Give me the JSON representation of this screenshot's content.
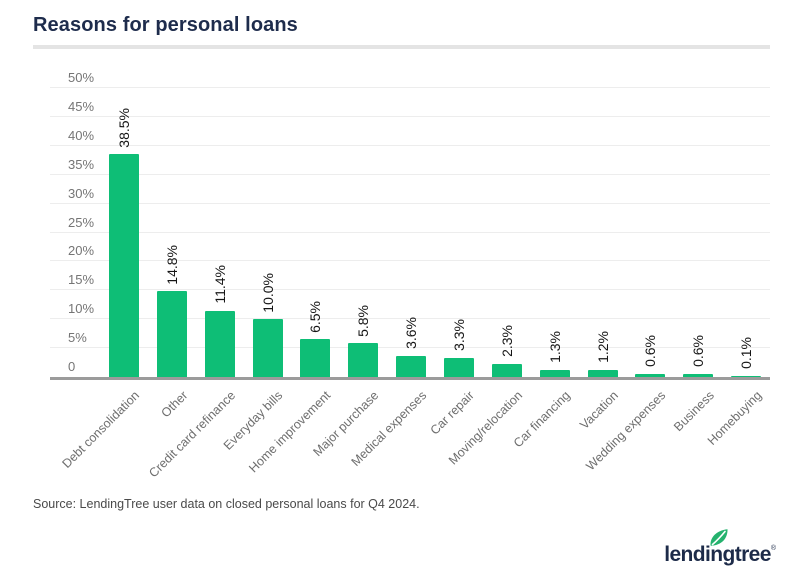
{
  "header": {
    "title": "Reasons for personal loans"
  },
  "chart_data": {
    "type": "bar",
    "title": "Reasons for personal loans",
    "categories": [
      "Debt consolidation",
      "Other",
      "Credit card refinance",
      "Everyday bills",
      "Home improvement",
      "Major purchase",
      "Medical expenses",
      "Car repair",
      "Moving/relocation",
      "Car financing",
      "Vacation",
      "Wedding expenses",
      "Business",
      "Homebuying"
    ],
    "values": [
      38.5,
      14.8,
      11.4,
      10.0,
      6.5,
      5.8,
      3.6,
      3.3,
      2.3,
      1.3,
      1.2,
      0.6,
      0.6,
      0.1
    ],
    "value_labels": [
      "38.5%",
      "14.8%",
      "11.4%",
      "10.0%",
      "6.5%",
      "5.8%",
      "3.6%",
      "3.3%",
      "2.3%",
      "1.3%",
      "1.2%",
      "0.6%",
      "0.6%",
      "0.1%"
    ],
    "ytick_labels": [
      "0",
      "5%",
      "10%",
      "15%",
      "20%",
      "25%",
      "30%",
      "35%",
      "40%",
      "45%",
      "50%"
    ],
    "ylim": [
      0,
      50
    ],
    "xlabel": "",
    "ylabel": "",
    "grid": "horizontal",
    "legend": "none",
    "bar_color": "#0ebe76"
  },
  "footer": {
    "source": "Source: LendingTree user data on closed personal loans for Q4 2024.",
    "logo_text": "lendingtree",
    "logo_mark": "®"
  },
  "colors": {
    "bar": "#0ebe76",
    "title": "#1e2c4c",
    "grid": "#ededed",
    "axis": "#9b9b9b",
    "tick": "#757575",
    "category": "#6e6e6e",
    "value": "#151515",
    "leaf": "#25b26e",
    "logo_navy": "#1d2b49"
  }
}
